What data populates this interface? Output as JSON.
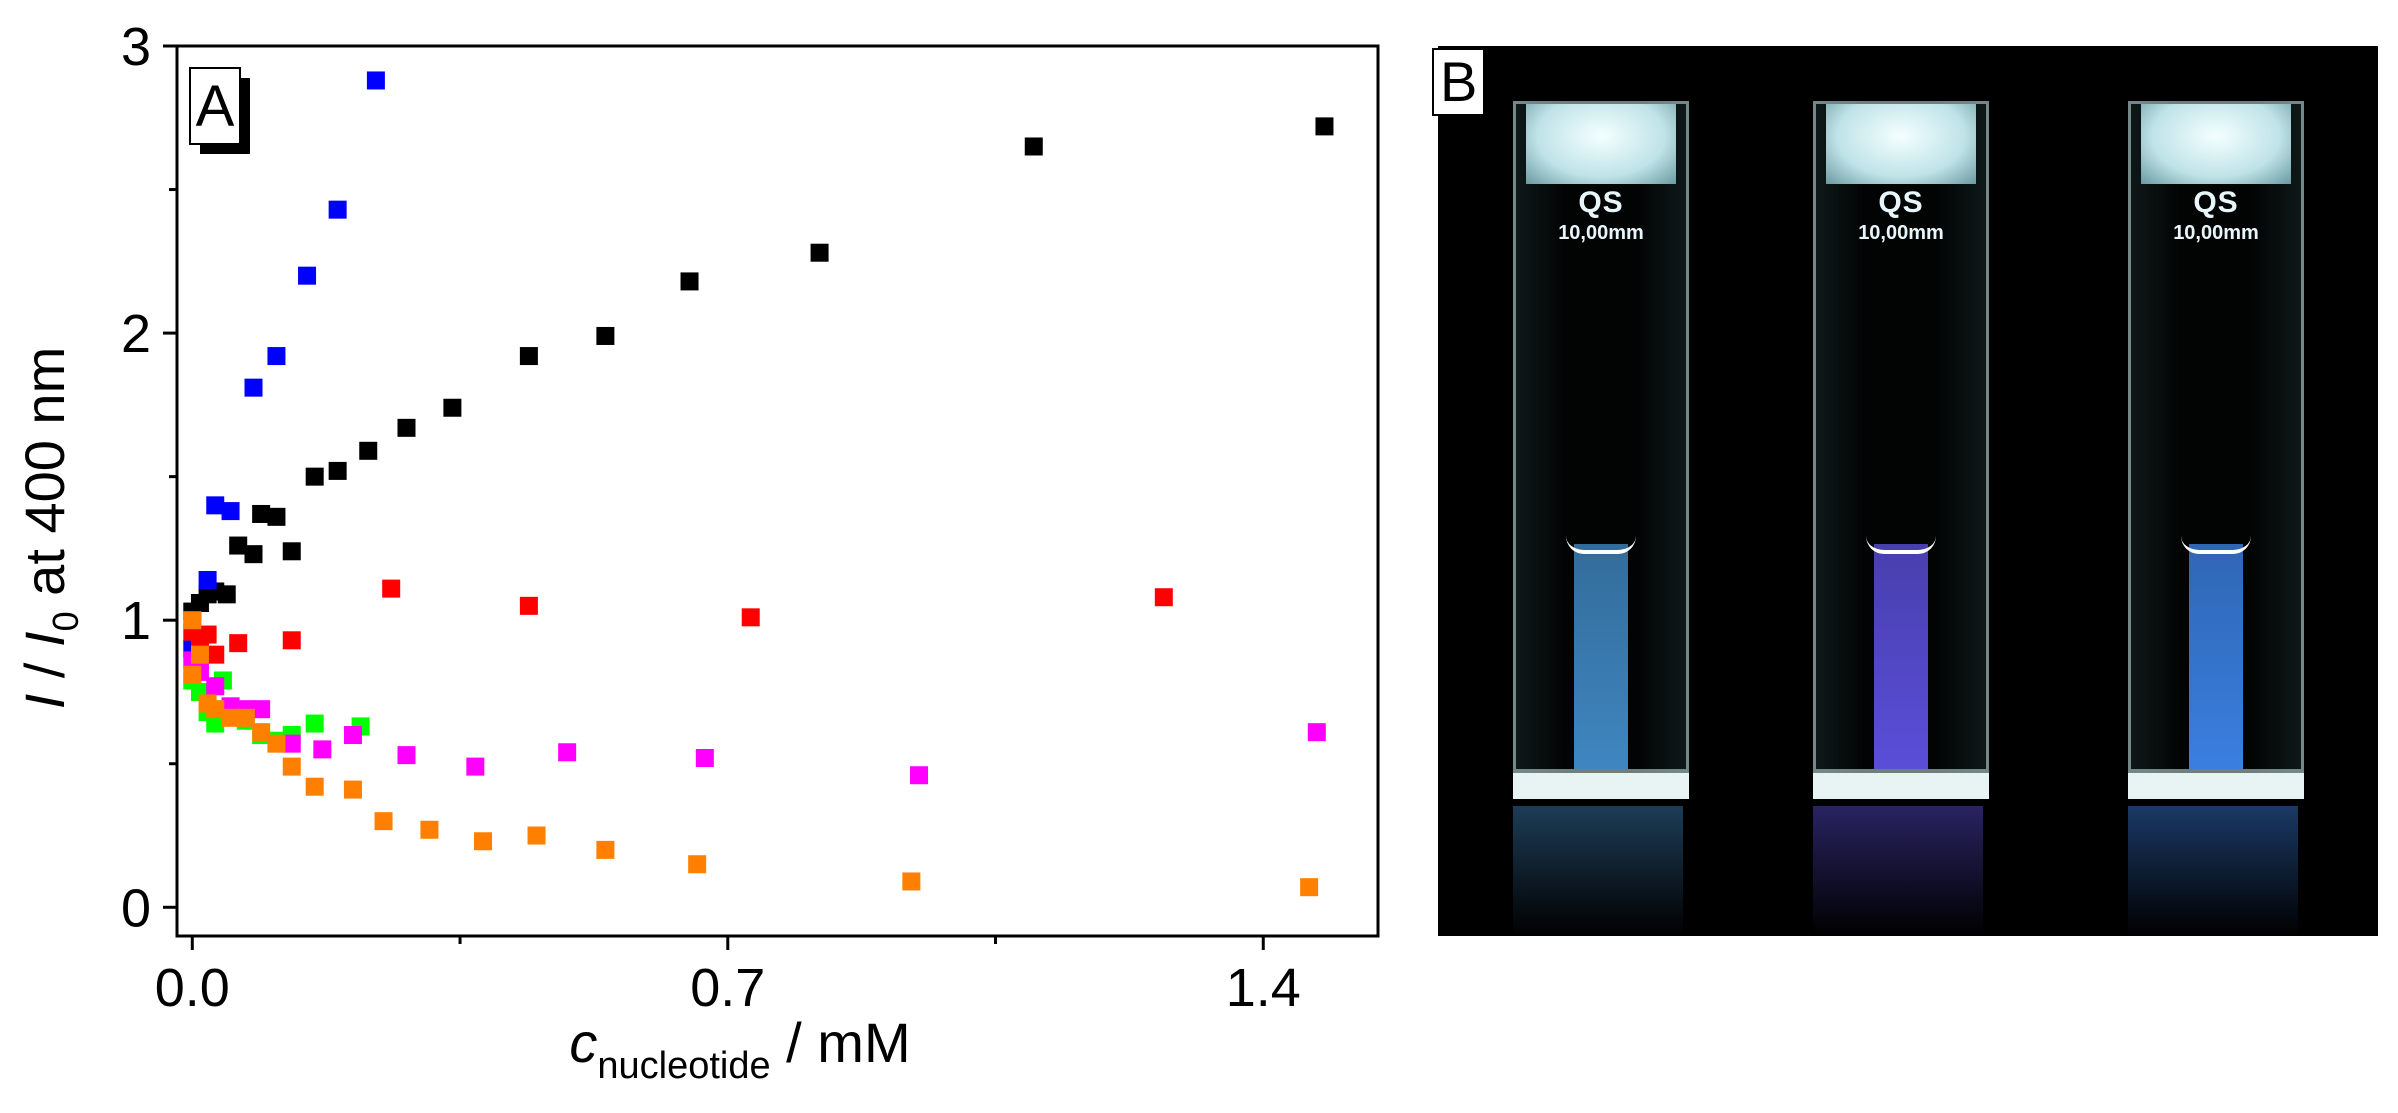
{
  "chart_data": {
    "type": "scatter",
    "panel_label": "A",
    "xlabel_var": "c",
    "xlabel_sub": "nucleotide",
    "xlabel_unit": " / mM",
    "ylabel_parts": {
      "v1": "I",
      "sep": " / ",
      "v2": "I",
      "sub": "0",
      "rest": " at 400 nm"
    },
    "xlim": [
      -0.02,
      1.55
    ],
    "ylim": [
      -0.1,
      3.0
    ],
    "x_ticks": [
      {
        "v": 0.0,
        "label": "0.0"
      },
      {
        "v": 0.7,
        "label": "0.7"
      },
      {
        "v": 1.4,
        "label": "1.4"
      }
    ],
    "x_minor_ticks": [
      0.35,
      1.05
    ],
    "y_ticks": [
      {
        "v": 0,
        "label": "0"
      },
      {
        "v": 1,
        "label": "1"
      },
      {
        "v": 2,
        "label": "2"
      },
      {
        "v": 3,
        "label": "3"
      }
    ],
    "y_minor_ticks": [
      0.5,
      1.5,
      2.5
    ],
    "series": [
      {
        "name": "black",
        "color": "#000000",
        "points": [
          [
            0.0,
            1.03
          ],
          [
            0.01,
            1.06
          ],
          [
            0.02,
            1.09
          ],
          [
            0.03,
            1.1
          ],
          [
            0.045,
            1.09
          ],
          [
            0.06,
            1.26
          ],
          [
            0.08,
            1.23
          ],
          [
            0.09,
            1.37
          ],
          [
            0.11,
            1.36
          ],
          [
            0.13,
            1.24
          ],
          [
            0.16,
            1.5
          ],
          [
            0.19,
            1.52
          ],
          [
            0.23,
            1.59
          ],
          [
            0.28,
            1.67
          ],
          [
            0.34,
            1.74
          ],
          [
            0.44,
            1.92
          ],
          [
            0.54,
            1.99
          ],
          [
            0.65,
            2.18
          ],
          [
            0.82,
            2.28
          ],
          [
            1.1,
            2.65
          ],
          [
            1.48,
            2.72
          ]
        ]
      },
      {
        "name": "blue",
        "color": "#0000ff",
        "points": [
          [
            0.0,
            0.9
          ],
          [
            0.02,
            1.14
          ],
          [
            0.03,
            1.4
          ],
          [
            0.05,
            1.38
          ],
          [
            0.08,
            1.81
          ],
          [
            0.11,
            1.92
          ],
          [
            0.15,
            2.2
          ],
          [
            0.19,
            2.43
          ],
          [
            0.24,
            2.88
          ]
        ]
      },
      {
        "name": "red",
        "color": "#ff0000",
        "points": [
          [
            0.0,
            0.96
          ],
          [
            0.01,
            0.92
          ],
          [
            0.02,
            0.95
          ],
          [
            0.03,
            0.88
          ],
          [
            0.06,
            0.92
          ],
          [
            0.13,
            0.93
          ],
          [
            0.26,
            1.11
          ],
          [
            0.44,
            1.05
          ],
          [
            0.73,
            1.01
          ],
          [
            1.27,
            1.08
          ]
        ]
      },
      {
        "name": "green",
        "color": "#00ff00",
        "points": [
          [
            0.0,
            0.79
          ],
          [
            0.01,
            0.75
          ],
          [
            0.02,
            0.68
          ],
          [
            0.03,
            0.64
          ],
          [
            0.04,
            0.79
          ],
          [
            0.05,
            0.67
          ],
          [
            0.07,
            0.65
          ],
          [
            0.09,
            0.6
          ],
          [
            0.11,
            0.58
          ],
          [
            0.13,
            0.6
          ],
          [
            0.16,
            0.64
          ],
          [
            0.22,
            0.63
          ]
        ]
      },
      {
        "name": "magenta",
        "color": "#ff00ff",
        "points": [
          [
            0.0,
            0.86
          ],
          [
            0.01,
            0.82
          ],
          [
            0.03,
            0.77
          ],
          [
            0.05,
            0.7
          ],
          [
            0.07,
            0.69
          ],
          [
            0.09,
            0.69
          ],
          [
            0.13,
            0.57
          ],
          [
            0.17,
            0.55
          ],
          [
            0.21,
            0.6
          ],
          [
            0.28,
            0.53
          ],
          [
            0.37,
            0.49
          ],
          [
            0.49,
            0.54
          ],
          [
            0.67,
            0.52
          ],
          [
            0.95,
            0.46
          ],
          [
            1.47,
            0.61
          ]
        ]
      },
      {
        "name": "orange",
        "color": "#ff7f00",
        "points": [
          [
            0.0,
            1.0
          ],
          [
            0.0,
            0.81
          ],
          [
            0.01,
            0.88
          ],
          [
            0.02,
            0.71
          ],
          [
            0.03,
            0.69
          ],
          [
            0.05,
            0.66
          ],
          [
            0.07,
            0.66
          ],
          [
            0.09,
            0.61
          ],
          [
            0.11,
            0.57
          ],
          [
            0.13,
            0.49
          ],
          [
            0.16,
            0.42
          ],
          [
            0.21,
            0.41
          ],
          [
            0.25,
            0.3
          ],
          [
            0.31,
            0.27
          ],
          [
            0.38,
            0.23
          ],
          [
            0.45,
            0.25
          ],
          [
            0.54,
            0.2
          ],
          [
            0.66,
            0.15
          ],
          [
            0.94,
            0.09
          ],
          [
            1.46,
            0.07
          ]
        ]
      }
    ]
  },
  "photo": {
    "panel_label": "B",
    "cuvettes": [
      {
        "qs": "QS",
        "dim": "10,00mm",
        "liquid_color": "#3f86c0"
      },
      {
        "qs": "QS",
        "dim": "10,00mm",
        "liquid_color": "#5a4ed8"
      },
      {
        "qs": "QS",
        "dim": "10,00mm",
        "liquid_color": "#3a7fe0"
      }
    ]
  }
}
